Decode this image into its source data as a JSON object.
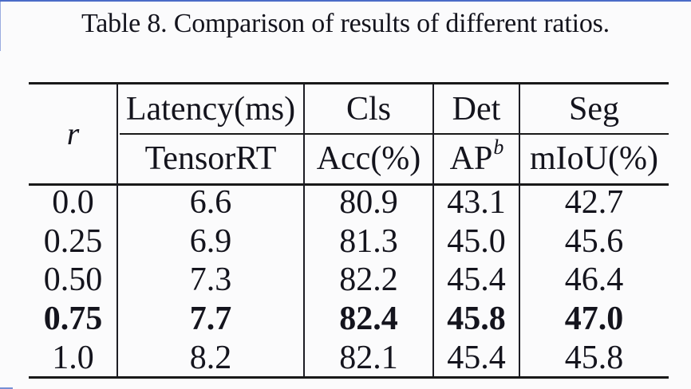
{
  "page": {
    "background": "#fbfbfc"
  },
  "colors": {
    "text": "#14141d",
    "rule": "#191919",
    "accent_blue_border": "#4a6cc8",
    "background": "#fbfbfc"
  },
  "chart_data": {
    "type": "table",
    "title": "Table 8. Comparison of results of different ratios.",
    "corner_header": "r",
    "group_headers": [
      "Latency(ms)",
      "Cls",
      "Det",
      "Seg"
    ],
    "sub_headers": [
      "TensorRT",
      "Acc(%)",
      "AP",
      "mIoU(%)"
    ],
    "ap_superscript": "b",
    "rows": [
      [
        "0.0",
        "6.6",
        "80.9",
        "43.1",
        "42.7"
      ],
      [
        "0.25",
        "6.9",
        "81.3",
        "45.0",
        "45.6"
      ],
      [
        "0.50",
        "7.3",
        "82.2",
        "45.4",
        "46.4"
      ],
      [
        "0.75",
        "7.7",
        "82.4",
        "45.8",
        "47.0"
      ],
      [
        "1.0",
        "8.2",
        "82.1",
        "45.4",
        "45.8"
      ]
    ],
    "bold_row_index": 3
  }
}
